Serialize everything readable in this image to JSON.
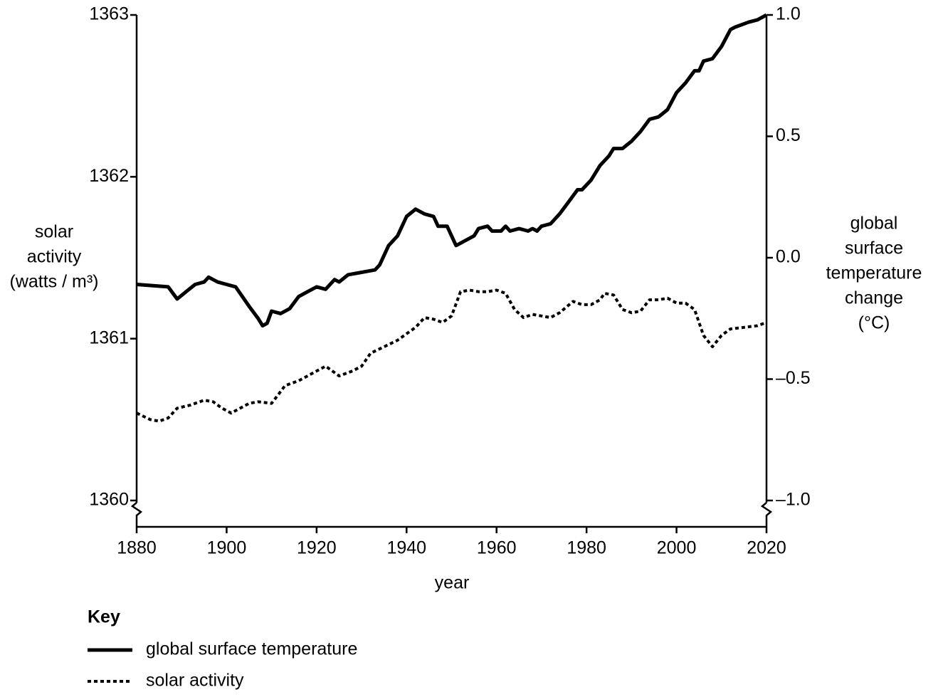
{
  "chart_data": {
    "type": "line",
    "x_label": "year",
    "y_label": [
      "solar",
      "activity",
      "(watts / m³)"
    ],
    "y2_label": [
      "global",
      "surface",
      "temperature",
      "change",
      "(°C)"
    ],
    "xlim": [
      1880,
      2020
    ],
    "xticks": [
      1880,
      1900,
      1920,
      1940,
      1960,
      1980,
      2000,
      2020
    ],
    "ylim": [
      1360,
      1363
    ],
    "yticks": [
      1360,
      1361,
      1362,
      1363
    ],
    "y2lim": [
      -1,
      1
    ],
    "y2ticks": [
      {
        "value": -1,
        "label": "–1.0"
      },
      {
        "value": -0.5,
        "label": "–0.5"
      },
      {
        "value": 0,
        "label": "0.0"
      },
      {
        "value": 0.5,
        "label": "0.5"
      },
      {
        "value": 1,
        "label": "1.0"
      }
    ],
    "legend_title": "Key",
    "legend": "bottom-left",
    "series": [
      {
        "name": "global surface temperature",
        "color": "#000000",
        "style": "solid",
        "axis": "y2",
        "x": [
          1880,
          1887,
          1889,
          1891,
          1893,
          1895,
          1896,
          1898,
          1900,
          1902,
          1905,
          1907,
          1908,
          1909,
          1910,
          1912,
          1914,
          1916,
          1918,
          1920,
          1922,
          1924,
          1925,
          1927,
          1930,
          1933,
          1934,
          1936,
          1938,
          1940,
          1942,
          1944,
          1946,
          1947,
          1949,
          1951,
          1953,
          1955,
          1956,
          1958,
          1959,
          1961,
          1962,
          1963,
          1965,
          1967,
          1968,
          1969,
          1970,
          1972,
          1974,
          1976,
          1978,
          1979,
          1981,
          1983,
          1985,
          1986,
          1988,
          1990,
          1992,
          1994,
          1996,
          1998,
          2000,
          2002,
          2004,
          2005,
          2006,
          2008,
          2010,
          2012,
          2013,
          2016,
          2018,
          2020
        ],
        "values": [
          -0.11,
          -0.12,
          -0.17,
          -0.14,
          -0.11,
          -0.1,
          -0.08,
          -0.1,
          -0.11,
          -0.12,
          -0.2,
          -0.25,
          -0.28,
          -0.27,
          -0.22,
          -0.23,
          -0.21,
          -0.16,
          -0.14,
          -0.12,
          -0.13,
          -0.09,
          -0.1,
          -0.07,
          -0.06,
          -0.05,
          -0.03,
          0.05,
          0.09,
          0.17,
          0.2,
          0.18,
          0.17,
          0.13,
          0.13,
          0.05,
          0.07,
          0.09,
          0.12,
          0.13,
          0.11,
          0.11,
          0.13,
          0.11,
          0.12,
          0.11,
          0.12,
          0.11,
          0.13,
          0.14,
          0.18,
          0.23,
          0.28,
          0.28,
          0.32,
          0.38,
          0.42,
          0.45,
          0.45,
          0.48,
          0.52,
          0.57,
          0.58,
          0.61,
          0.68,
          0.72,
          0.77,
          0.77,
          0.81,
          0.82,
          0.87,
          0.94,
          0.95,
          0.97,
          0.98,
          1
        ]
      },
      {
        "name": "solar activity",
        "color": "#000000",
        "style": "dotted",
        "axis": "y",
        "x": [
          1880,
          1883,
          1885,
          1887,
          1889,
          1892,
          1895,
          1897,
          1899,
          1901,
          1903,
          1905,
          1907,
          1910,
          1913,
          1916,
          1918,
          1920,
          1922,
          1925,
          1928,
          1930,
          1932,
          1935,
          1938,
          1940,
          1942,
          1944,
          1946,
          1948,
          1950,
          1952,
          1954,
          1956,
          1958,
          1960,
          1962,
          1964,
          1966,
          1968,
          1970,
          1972,
          1974,
          1977,
          1979,
          1981,
          1983,
          1984,
          1986,
          1988,
          1990,
          1992,
          1994,
          1996,
          1998,
          2000,
          2002,
          2004,
          2006,
          2008,
          2010,
          2012,
          2015,
          2018,
          2020
        ],
        "values": [
          1360.54,
          1360.5,
          1360.49,
          1360.51,
          1360.57,
          1360.59,
          1360.62,
          1360.61,
          1360.57,
          1360.54,
          1360.57,
          1360.6,
          1360.61,
          1360.6,
          1360.71,
          1360.74,
          1360.77,
          1360.8,
          1360.83,
          1360.77,
          1360.8,
          1360.83,
          1360.91,
          1360.95,
          1360.99,
          1361.03,
          1361.07,
          1361.13,
          1361.12,
          1361.1,
          1361.14,
          1361.29,
          1361.3,
          1361.29,
          1361.29,
          1361.3,
          1361.28,
          1361.18,
          1361.13,
          1361.15,
          1361.14,
          1361.13,
          1361.16,
          1361.23,
          1361.21,
          1361.21,
          1361.24,
          1361.28,
          1361.27,
          1361.18,
          1361.16,
          1361.17,
          1361.24,
          1361.24,
          1361.25,
          1361.22,
          1361.22,
          1361.18,
          1361.02,
          1360.95,
          1361.02,
          1361.06,
          1361.07,
          1361.08,
          1361.1
        ]
      }
    ]
  }
}
